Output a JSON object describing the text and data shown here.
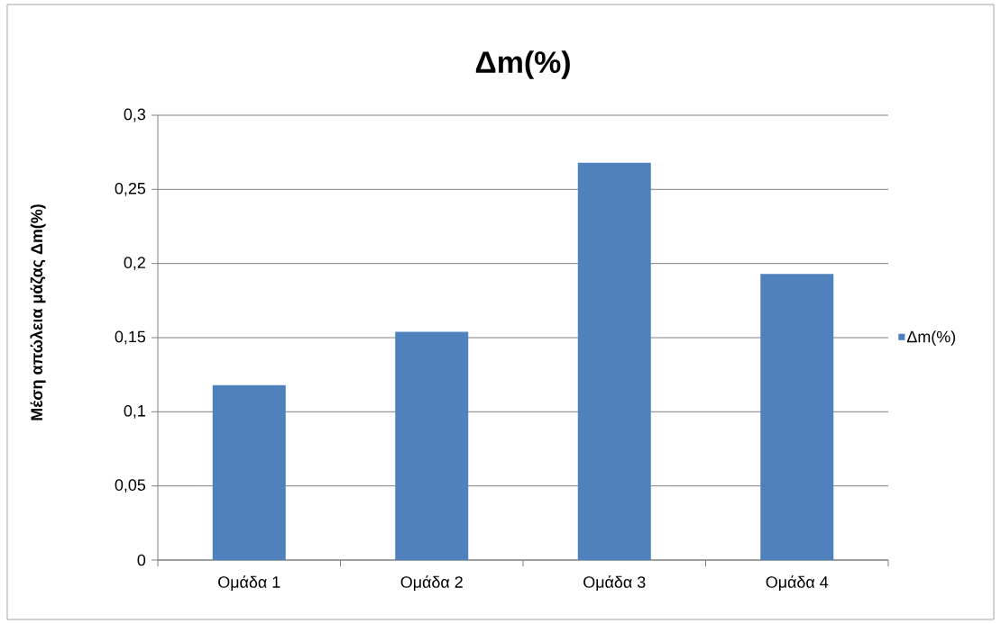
{
  "chart_data": {
    "type": "bar",
    "title": "Δm(%)",
    "ylabel": "Μέση απώλεια μάζας Δm(%)",
    "categories": [
      "Ομάδα 1",
      "Ομάδα 2",
      "Ομάδα 3",
      "Ομάδα 4"
    ],
    "series": [
      {
        "name": "Δm(%)",
        "color": "#4f81bd",
        "values": [
          0.118,
          0.154,
          0.268,
          0.193
        ]
      }
    ],
    "ylim": [
      0,
      0.3
    ],
    "yticks": [
      0,
      {
        "value": 0.05,
        "label": "0,05"
      },
      {
        "value": 0.1,
        "label": "0,1"
      },
      {
        "value": 0.15,
        "label": "0,15"
      },
      {
        "value": 0.2,
        "label": "0,2"
      },
      {
        "value": 0.25,
        "label": "0,25"
      },
      {
        "value": 0.3,
        "label": "0,3"
      }
    ],
    "grid": "y",
    "legend": "right"
  }
}
